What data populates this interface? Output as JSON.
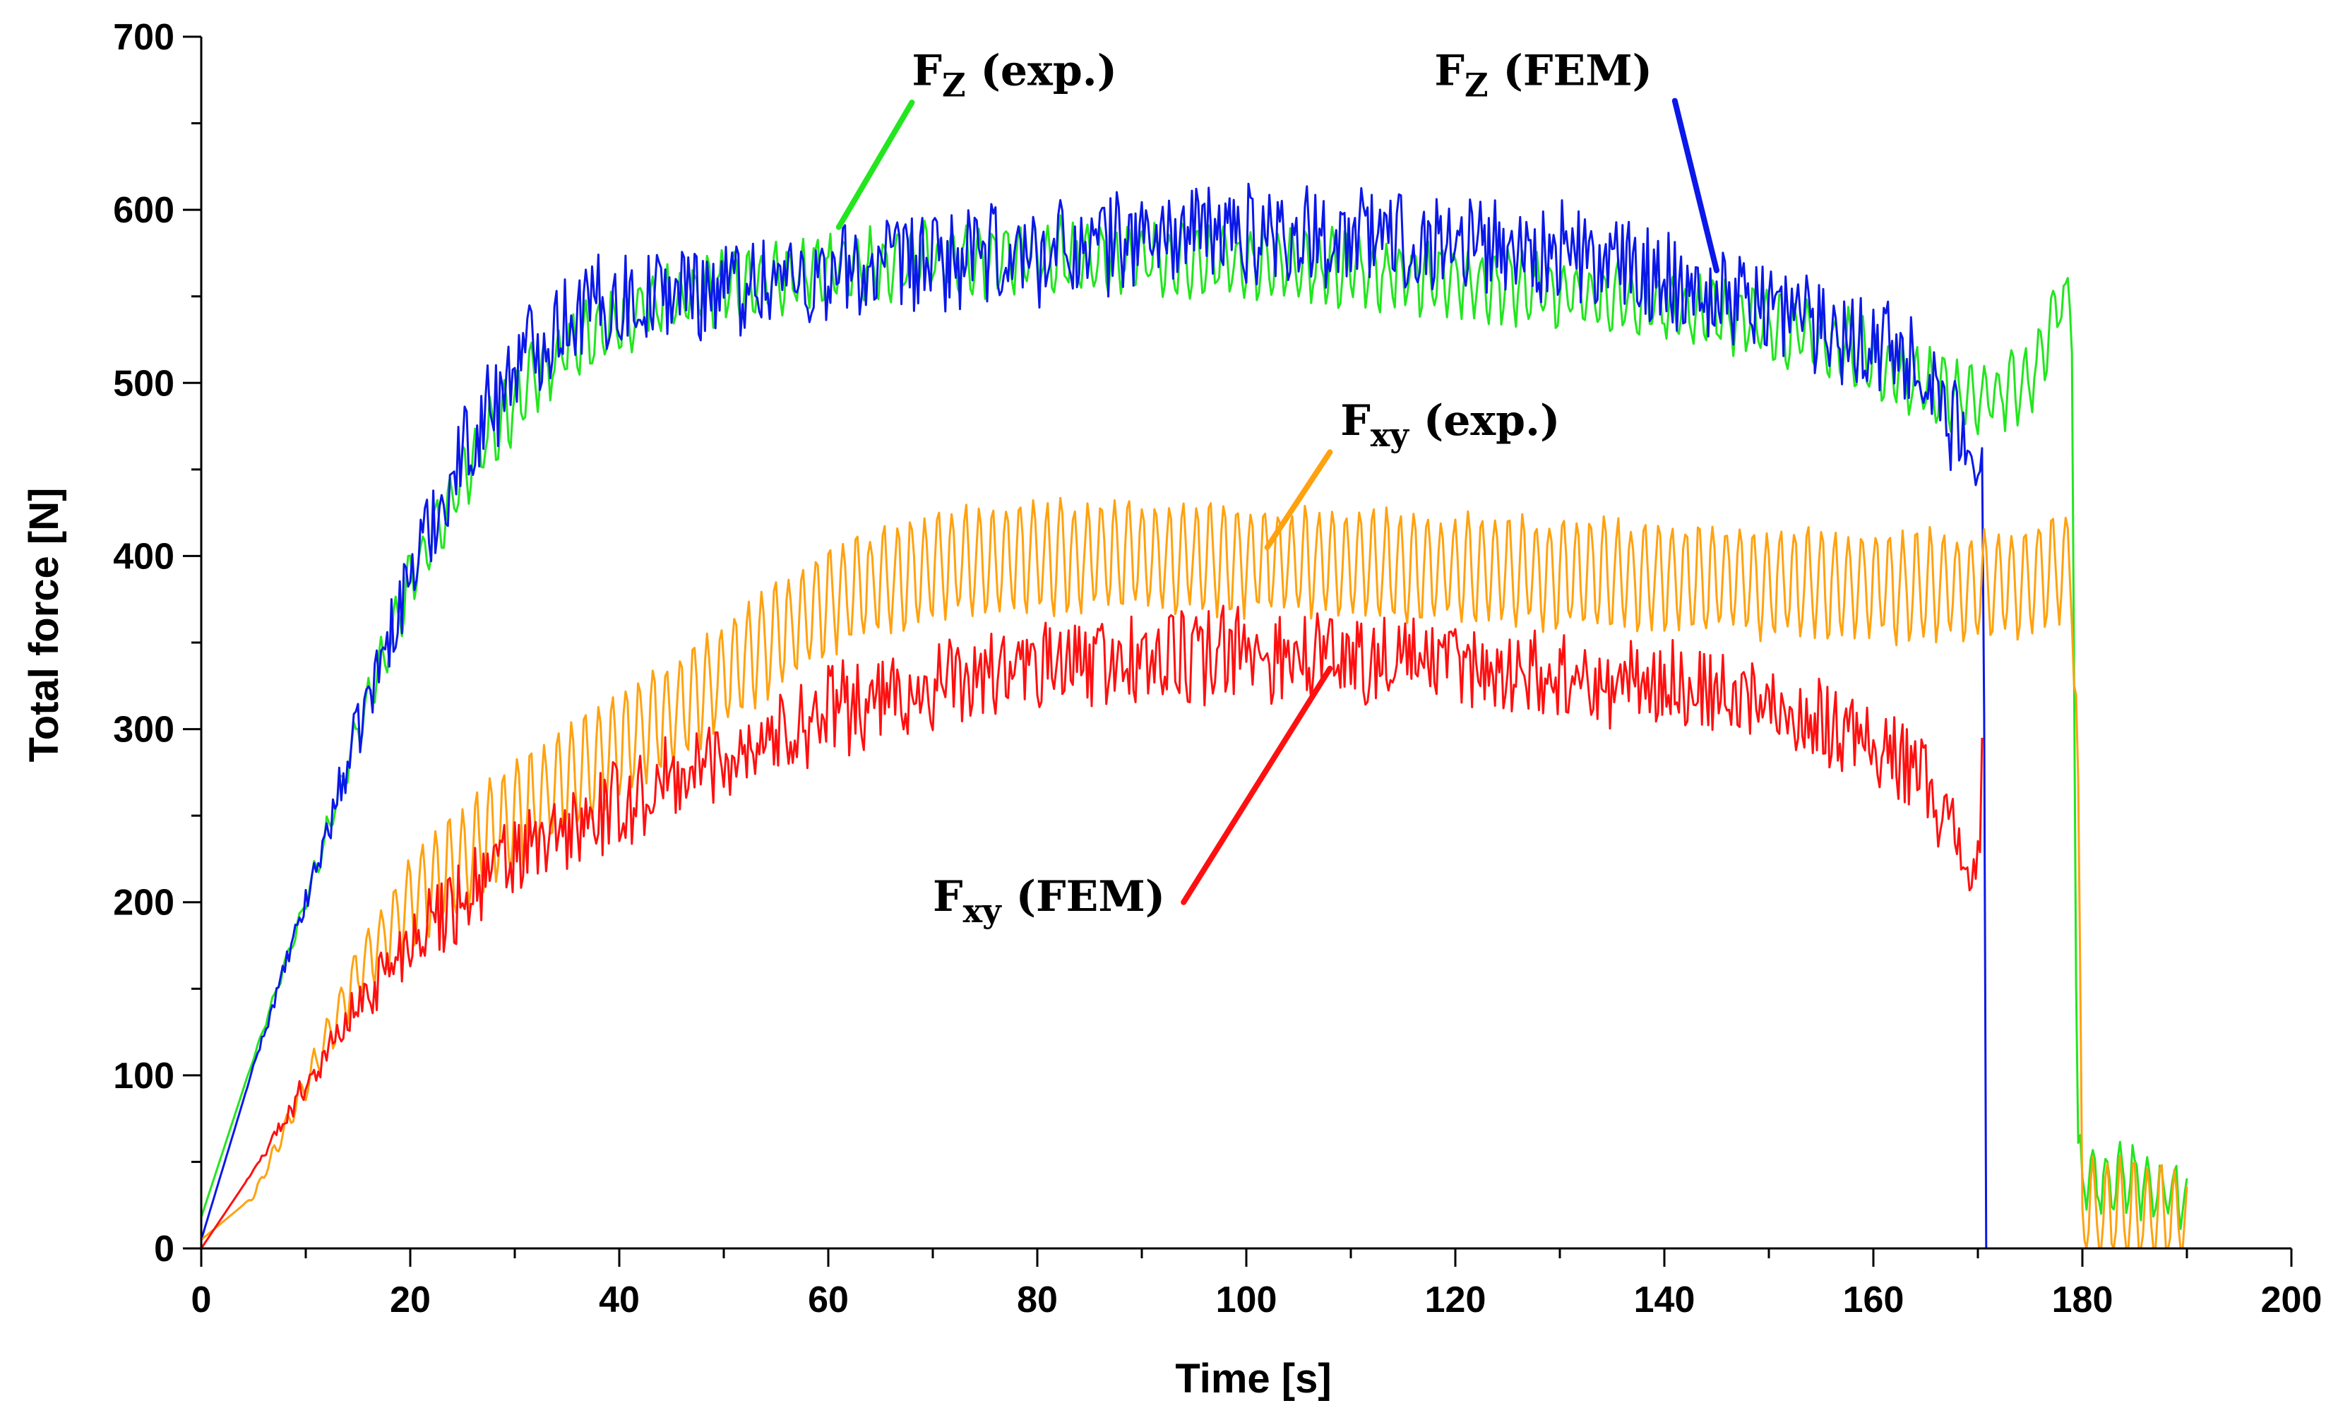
{
  "chart_data": {
    "type": "line",
    "title": "",
    "xlabel": "Time [s]",
    "ylabel": "Total force [N]",
    "xlim": [
      0,
      200
    ],
    "ylim": [
      0,
      700
    ],
    "x_ticks": [
      0,
      20,
      40,
      60,
      80,
      100,
      120,
      140,
      160,
      180,
      200
    ],
    "y_ticks": [
      0,
      100,
      200,
      300,
      400,
      500,
      600,
      700
    ],
    "grid": false,
    "legend": "none",
    "series": [
      {
        "name": "Fz (exp.)",
        "key": "fz_exp",
        "color": "#22e61e",
        "noise": 7,
        "osc": 18,
        "x": [
          0,
          5,
          10,
          15,
          20,
          25,
          30,
          35,
          40,
          45,
          50,
          60,
          70,
          80,
          90,
          100,
          110,
          120,
          130,
          140,
          150,
          160,
          165,
          170,
          175,
          178,
          179,
          179.5,
          180,
          185,
          190
        ],
        "y": [
          18,
          110,
          200,
          300,
          385,
          445,
          490,
          520,
          535,
          548,
          555,
          565,
          570,
          572,
          572,
          570,
          566,
          560,
          553,
          545,
          533,
          515,
          498,
          490,
          500,
          550,
          540,
          50,
          38,
          38,
          30
        ]
      },
      {
        "name": "Fz (FEM)",
        "key": "fz_fem",
        "color": "#0a18e8",
        "noise": 28,
        "osc": 4,
        "x": [
          0,
          5,
          10,
          15,
          20,
          25,
          30,
          35,
          40,
          50,
          60,
          70,
          80,
          90,
          100,
          110,
          120,
          130,
          140,
          150,
          160,
          165,
          168,
          170.5,
          170.8,
          171
        ],
        "y": [
          5,
          105,
          200,
          300,
          390,
          460,
          510,
          540,
          548,
          557,
          562,
          570,
          575,
          585,
          587,
          585,
          582,
          575,
          560,
          545,
          525,
          510,
          470,
          440,
          0,
          0
        ]
      },
      {
        "name": "Fxy (exp.)",
        "key": "fxy_exp",
        "color": "#ffa20f",
        "noise": 5,
        "osc": 30,
        "x": [
          0,
          5,
          10,
          15,
          20,
          25,
          30,
          40,
          50,
          60,
          70,
          80,
          90,
          100,
          110,
          120,
          130,
          140,
          150,
          160,
          170,
          175,
          178,
          179,
          179.5,
          180,
          185,
          190
        ],
        "y": [
          5,
          30,
          95,
          160,
          200,
          225,
          250,
          290,
          330,
          375,
          395,
          400,
          400,
          398,
          395,
          392,
          390,
          388,
          385,
          383,
          382,
          385,
          395,
          390,
          300,
          20,
          20,
          14
        ]
      },
      {
        "name": "Fxy (FEM)",
        "key": "fxy_fem",
        "color": "#ff1010",
        "noise": 25,
        "osc": 4,
        "x": [
          0,
          5,
          10,
          15,
          20,
          25,
          30,
          40,
          50,
          60,
          70,
          80,
          90,
          100,
          110,
          120,
          130,
          140,
          150,
          160,
          165,
          168,
          170,
          170.5
        ],
        "y": [
          0,
          45,
          95,
          140,
          180,
          205,
          225,
          255,
          285,
          310,
          325,
          335,
          340,
          343,
          342,
          337,
          330,
          325,
          315,
          295,
          270,
          235,
          215,
          300
        ]
      }
    ],
    "annotations": [
      {
        "key": "fz_exp",
        "main": "F",
        "sub": "Z",
        "tail": " (exp.)",
        "color": "#22e61e",
        "from": [
          61,
          590
        ],
        "to": [
          68,
          662
        ],
        "text_at": [
          68,
          672
        ]
      },
      {
        "key": "fz_fem",
        "main": "F",
        "sub": "Z",
        "tail": " (FEM)",
        "color": "#0a18e8",
        "from": [
          145,
          565
        ],
        "to": [
          141,
          663
        ],
        "text_at": [
          118,
          672
        ]
      },
      {
        "key": "fxy_exp",
        "main": "F",
        "sub": "xy",
        "tail": " (exp.)",
        "color": "#ffa20f",
        "from": [
          102,
          405
        ],
        "to": [
          108,
          460
        ],
        "text_at": [
          109,
          470
        ]
      },
      {
        "key": "fxy_fem",
        "main": "F",
        "sub": "xy",
        "tail": " (FEM)",
        "color": "#ff1010",
        "from": [
          108,
          335
        ],
        "to": [
          94,
          200
        ],
        "text_at": [
          70,
          195
        ]
      }
    ]
  }
}
